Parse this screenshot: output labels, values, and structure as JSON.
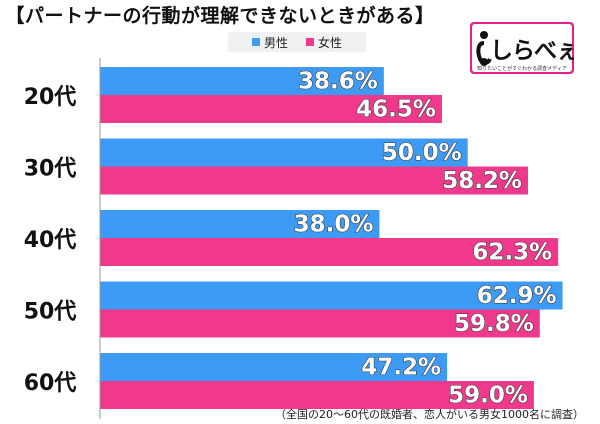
{
  "title": "【パートナーの行動が理解できないときがある】",
  "legend": [
    {
      "label": "男性",
      "color": "#3d9bf5"
    },
    {
      "label": "女性",
      "color": "#f0388c"
    }
  ],
  "logo": {
    "mark": "し",
    "text": "しらべぇ",
    "tagline": "知りたいことがすぐわかる調査メディア",
    "color": "#e91e8c"
  },
  "footnote": "（全国の20～60代の既婚者、恋人がいる男女1000名に調査）",
  "chart_data": {
    "type": "bar",
    "orientation": "horizontal",
    "categories": [
      "20代",
      "30代",
      "40代",
      "50代",
      "60代"
    ],
    "series": [
      {
        "name": "男性",
        "values": [
          38.6,
          50.0,
          38.0,
          62.9,
          47.2
        ],
        "color": "#3d9bf5"
      },
      {
        "name": "女性",
        "values": [
          46.5,
          58.2,
          62.3,
          59.8,
          59.0
        ],
        "color": "#f0388c"
      }
    ],
    "value_labels": [
      [
        "38.6%",
        "50.0%",
        "38.0%",
        "62.9%",
        "47.2%"
      ],
      [
        "46.5%",
        "58.2%",
        "62.3%",
        "59.8%",
        "59.0%"
      ]
    ],
    "xlim": [
      0,
      65
    ],
    "grid": false,
    "legend_position": "top"
  }
}
